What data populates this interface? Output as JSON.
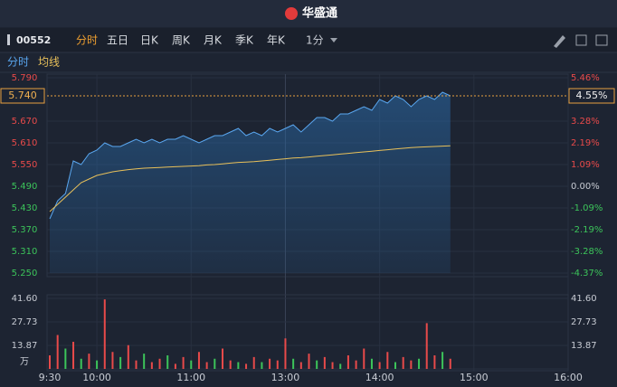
{
  "header": {
    "title": "华盛通"
  },
  "toolbar": {
    "code": "00552",
    "tabs": [
      "分时",
      "五日",
      "日K",
      "周K",
      "月K",
      "季K",
      "年K"
    ],
    "interval": "1分"
  },
  "chart_data": [
    {
      "type": "line",
      "x": [
        0,
        5,
        10,
        15,
        20,
        25,
        30,
        35,
        40,
        45,
        50,
        55,
        60,
        65,
        70,
        75,
        80,
        85,
        90,
        95,
        100,
        105,
        110,
        115,
        120,
        125,
        130,
        135,
        140,
        145,
        150,
        155,
        160,
        165,
        170,
        175,
        180,
        185,
        190,
        195,
        200,
        205,
        210,
        215,
        220,
        225,
        230,
        235,
        240,
        245,
        250,
        255
      ],
      "series": [
        {
          "name": "分时",
          "color": "#5aa7f0",
          "values": [
            5.4,
            5.45,
            5.47,
            5.56,
            5.55,
            5.58,
            5.59,
            5.61,
            5.6,
            5.6,
            5.61,
            5.62,
            5.61,
            5.62,
            5.61,
            5.62,
            5.62,
            5.63,
            5.62,
            5.61,
            5.62,
            5.63,
            5.63,
            5.64,
            5.65,
            5.63,
            5.64,
            5.63,
            5.65,
            5.64,
            5.65,
            5.66,
            5.64,
            5.66,
            5.68,
            5.68,
            5.67,
            5.69,
            5.69,
            5.7,
            5.71,
            5.7,
            5.73,
            5.72,
            5.74,
            5.73,
            5.71,
            5.73,
            5.74,
            5.73,
            5.75,
            5.74
          ]
        },
        {
          "name": "均线",
          "color": "#e8c05a",
          "values": [
            5.42,
            5.44,
            5.46,
            5.48,
            5.5,
            5.51,
            5.52,
            5.525,
            5.53,
            5.533,
            5.536,
            5.538,
            5.54,
            5.541,
            5.542,
            5.543,
            5.544,
            5.545,
            5.546,
            5.547,
            5.549,
            5.55,
            5.552,
            5.554,
            5.556,
            5.557,
            5.558,
            5.56,
            5.562,
            5.564,
            5.566,
            5.568,
            5.569,
            5.571,
            5.573,
            5.575,
            5.577,
            5.579,
            5.581,
            5.583,
            5.585,
            5.587,
            5.589,
            5.591,
            5.593,
            5.595,
            5.597,
            5.598,
            5.599,
            5.6,
            5.601,
            5.602
          ]
        }
      ],
      "xlim": [
        0,
        330
      ],
      "ylim": [
        5.25,
        5.79
      ],
      "yticks": [
        {
          "value": 5.79,
          "label": "5.790"
        },
        {
          "value": 5.67,
          "label": "5.670"
        },
        {
          "value": 5.61,
          "label": "5.610"
        },
        {
          "value": 5.55,
          "label": "5.550"
        },
        {
          "value": 5.49,
          "label": "5.490"
        },
        {
          "value": 5.43,
          "label": "5.430"
        },
        {
          "value": 5.37,
          "label": "5.370"
        },
        {
          "value": 5.31,
          "label": "5.310"
        },
        {
          "value": 5.25,
          "label": "5.250"
        }
      ],
      "y2lim": [
        -4.37,
        5.46
      ],
      "y2ticks": [
        {
          "value": 5.46,
          "label": "5.46%"
        },
        {
          "value": 3.28,
          "label": "3.28%"
        },
        {
          "value": 2.19,
          "label": "2.19%"
        },
        {
          "value": 1.09,
          "label": "1.09%"
        },
        {
          "value": 0,
          "label": "0.00%"
        },
        {
          "value": -1.09,
          "label": "-1.09%"
        },
        {
          "value": -2.19,
          "label": "-2.19%"
        },
        {
          "value": -3.28,
          "label": "-3.28%"
        },
        {
          "value": -4.37,
          "label": "-4.37%"
        }
      ],
      "last_price": {
        "value": 5.74,
        "label": "5.740"
      },
      "last_change": {
        "value": 4.55,
        "label": "4.55%"
      },
      "grid": true
    },
    {
      "type": "bar",
      "x": [
        0,
        5,
        10,
        15,
        20,
        25,
        30,
        35,
        40,
        45,
        50,
        55,
        60,
        65,
        70,
        75,
        80,
        85,
        90,
        95,
        100,
        105,
        110,
        115,
        120,
        125,
        130,
        135,
        140,
        145,
        150,
        155,
        160,
        165,
        170,
        175,
        180,
        185,
        190,
        195,
        200,
        205,
        210,
        215,
        220,
        225,
        230,
        235,
        240,
        245,
        250,
        255
      ],
      "values": [
        8,
        20,
        12,
        16,
        6,
        9,
        5,
        41,
        10,
        7,
        14,
        5,
        9,
        4,
        6,
        8,
        3,
        7,
        5,
        10,
        4,
        6,
        12,
        5,
        4,
        3,
        7,
        4,
        6,
        5,
        18,
        6,
        4,
        9,
        5,
        7,
        4,
        3,
        8,
        5,
        12,
        6,
        4,
        10,
        4,
        7,
        5,
        6,
        27,
        8,
        10,
        6
      ],
      "colors": [
        "#e84a4a",
        "#e84a4a",
        "#3cc45a",
        "#e84a4a",
        "#3cc45a",
        "#e84a4a",
        "#3cc45a",
        "#e84a4a",
        "#e84a4a",
        "#3cc45a",
        "#e84a4a",
        "#e84a4a",
        "#3cc45a",
        "#e84a4a",
        "#e84a4a",
        "#3cc45a",
        "#e84a4a",
        "#e84a4a",
        "#3cc45a",
        "#e84a4a",
        "#e84a4a",
        "#3cc45a",
        "#e84a4a",
        "#e84a4a",
        "#3cc45a",
        "#e84a4a",
        "#e84a4a",
        "#3cc45a",
        "#e84a4a",
        "#e84a4a",
        "#e84a4a",
        "#3cc45a",
        "#e84a4a",
        "#e84a4a",
        "#3cc45a",
        "#e84a4a",
        "#e84a4a",
        "#3cc45a",
        "#e84a4a",
        "#e84a4a",
        "#e84a4a",
        "#3cc45a",
        "#e84a4a",
        "#e84a4a",
        "#3cc45a",
        "#e84a4a",
        "#e84a4a",
        "#3cc45a",
        "#e84a4a",
        "#e84a4a",
        "#3cc45a",
        "#e84a4a"
      ],
      "xlim": [
        0,
        330
      ],
      "xticks": [
        {
          "value": 0,
          "label": "9:30"
        },
        {
          "value": 30,
          "label": "10:00"
        },
        {
          "value": 90,
          "label": "11:00"
        },
        {
          "value": 150,
          "label": "13:00"
        },
        {
          "value": 210,
          "label": "14:00"
        },
        {
          "value": 270,
          "label": "15:00"
        },
        {
          "value": 330,
          "label": "16:00"
        }
      ],
      "ylim": [
        0,
        41.6
      ],
      "yticks": [
        {
          "value": 41.6,
          "label": "41.60"
        },
        27.73,
        13.87,
        {
          "value": 0,
          "label": "万"
        }
      ],
      "y2ticks": [
        {
          "value": 41.6,
          "label": "41.60"
        },
        27.73,
        13.87
      ]
    }
  ]
}
